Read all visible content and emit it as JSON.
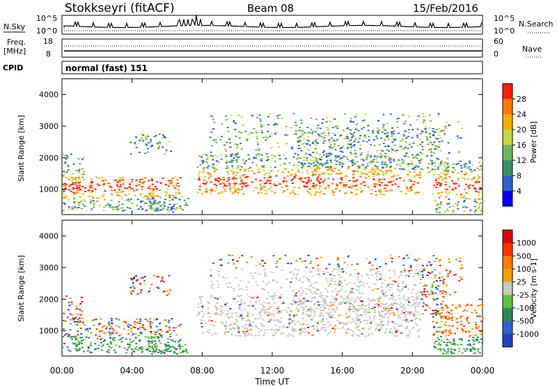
{
  "header": {
    "station": "Stokkseyri (fitACF)",
    "beam": "Beam 08",
    "date": "15/Feb/2016"
  },
  "panels": {
    "nsky_label": "N.Sky",
    "nsearch_label": "N.Search",
    "nsky_ticks": [
      "10^5",
      "10^0"
    ],
    "nsearch_ticks": [
      "10^5",
      "10^0"
    ],
    "freq_label": "Freq.",
    "freq_unit": "[MHz]",
    "freq_ticks": [
      "18",
      "8"
    ],
    "nave_label": "Nave",
    "nave_ticks": [
      "60",
      "0"
    ],
    "cpid_label": "CPID",
    "cpid_value": "normal (fast) 151"
  },
  "chart_data": [
    {
      "type": "heatmap",
      "name": "power",
      "ylabel": "Slant Range [km]",
      "y_ticks": [
        "4000",
        "3000",
        "2000",
        "1000"
      ],
      "ylim": [
        200,
        4500
      ],
      "colorbar_label": "Power [dB]",
      "colorbar_ticks": [
        "28",
        "24",
        "20",
        "16",
        "12",
        "8",
        "4"
      ],
      "colors": [
        "#0000ff",
        "#2f5fd0",
        "#3a8f6a",
        "#6fb85a",
        "#c8d640",
        "#f0b000",
        "#ff7a00",
        "#ff2000"
      ]
    },
    {
      "type": "heatmap",
      "name": "velocity",
      "ylabel": "Slant Range [km]",
      "y_ticks": [
        "4000",
        "3000",
        "2000",
        "1000"
      ],
      "ylim": [
        200,
        4500
      ],
      "colorbar_label": "Velocity [m s-1]",
      "colorbar_ticks": [
        "1000",
        "500",
        "100",
        "25",
        "-25",
        "-100",
        "-500",
        "-1000"
      ],
      "colors": [
        "#2040c0",
        "#3060d0",
        "#2a8a55",
        "#60c040",
        "#c8c8c0",
        "#f0a000",
        "#ff7a00",
        "#ff3000",
        "#e00000"
      ]
    }
  ],
  "xaxis": {
    "label": "Time UT",
    "ticks": [
      "00:00",
      "04:00",
      "08:00",
      "12:00",
      "16:00",
      "20:00",
      "00:00"
    ]
  }
}
